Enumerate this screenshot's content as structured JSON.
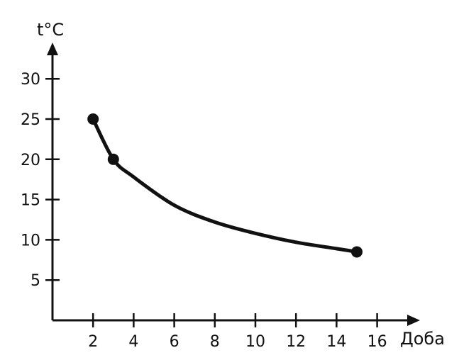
{
  "chart_data": {
    "type": "line",
    "xlabel": "Доба",
    "ylabel": "t°C",
    "x_ticks": [
      2,
      4,
      6,
      8,
      10,
      12,
      14,
      16
    ],
    "y_ticks": [
      5,
      10,
      15,
      20,
      25,
      30
    ],
    "xlim": [
      0,
      18
    ],
    "ylim": [
      0,
      33
    ],
    "grid": false,
    "series": [
      {
        "curve": [
          {
            "x": 2,
            "y": 25
          },
          {
            "x": 3,
            "y": 20
          },
          {
            "x": 4,
            "y": 17.8
          },
          {
            "x": 6,
            "y": 14.3
          },
          {
            "x": 8,
            "y": 12.2
          },
          {
            "x": 10,
            "y": 10.8
          },
          {
            "x": 12,
            "y": 9.7
          },
          {
            "x": 14,
            "y": 8.9
          },
          {
            "x": 15,
            "y": 8.5
          }
        ],
        "markers": [
          {
            "x": 2,
            "y": 25
          },
          {
            "x": 3,
            "y": 20
          },
          {
            "x": 15,
            "y": 8.5
          }
        ]
      }
    ],
    "colors": {
      "ink": "#111111",
      "background": "#ffffff"
    }
  }
}
